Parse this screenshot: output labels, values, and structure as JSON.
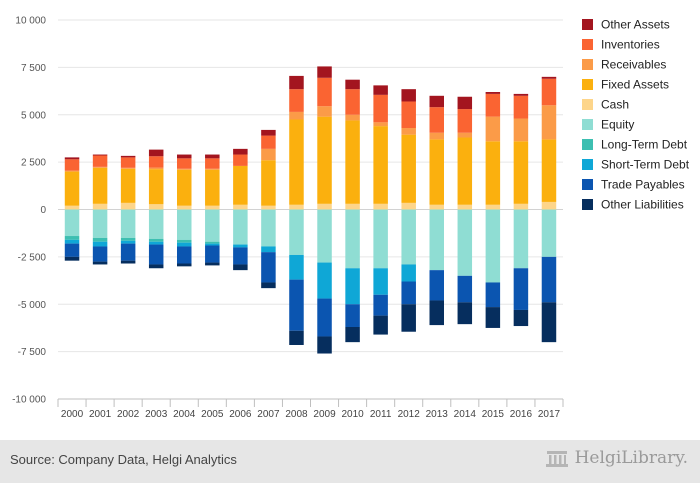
{
  "chart_data": {
    "type": "bar",
    "stacked": true,
    "categories": [
      "2000",
      "2001",
      "2002",
      "2003",
      "2004",
      "2005",
      "2006",
      "2007",
      "2008",
      "2009",
      "2010",
      "2011",
      "2012",
      "2013",
      "2014",
      "2015",
      "2016",
      "2017"
    ],
    "ylim": [
      -10000,
      10000
    ],
    "yticks": [
      10000,
      7500,
      5000,
      2500,
      0,
      -2500,
      -5000,
      -7500,
      -10000
    ],
    "ytick_labels": [
      "10 000",
      "7 500",
      "5 000",
      "2 500",
      "0",
      "-2 500",
      "-5 000",
      "-7 500",
      "-10 000"
    ],
    "grid": true,
    "legend_position": "right",
    "positive_series": [
      {
        "name": "Cash",
        "color": "#fdd58a",
        "values": [
          200,
          300,
          350,
          280,
          200,
          200,
          250,
          200,
          250,
          300,
          300,
          300,
          350,
          250,
          250,
          250,
          300,
          400
        ]
      },
      {
        "name": "Fixed Assets",
        "color": "#fbb00e",
        "values": [
          1800,
          1900,
          1800,
          1850,
          1900,
          1900,
          2050,
          2400,
          4500,
          4600,
          4400,
          4100,
          3600,
          3450,
          3550,
          3350,
          3300,
          3300
        ]
      },
      {
        "name": "Receivables",
        "color": "#fb9b48",
        "values": [
          50,
          50,
          50,
          80,
          50,
          50,
          0,
          600,
          400,
          550,
          300,
          200,
          350,
          350,
          250,
          1300,
          1200,
          1800
        ]
      },
      {
        "name": "Inventories",
        "color": "#fa6432",
        "values": [
          600,
          600,
          550,
          600,
          550,
          550,
          600,
          700,
          1200,
          1500,
          1350,
          1450,
          1400,
          1350,
          1250,
          1200,
          1200,
          1400
        ]
      },
      {
        "name": "Other Assets",
        "color": "#a3151f",
        "values": [
          100,
          50,
          80,
          350,
          200,
          200,
          300,
          300,
          700,
          600,
          500,
          500,
          650,
          600,
          650,
          100,
          100,
          100
        ]
      }
    ],
    "negative_series": [
      {
        "name": "Equity",
        "color": "#8fddd3",
        "values": [
          1400,
          1500,
          1500,
          1550,
          1600,
          1700,
          1850,
          1950,
          2400,
          2800,
          3100,
          3100,
          2900,
          3200,
          3500,
          3850,
          3100,
          2500
        ]
      },
      {
        "name": "Long-Term Debt",
        "color": "#3dbfb1",
        "values": [
          200,
          200,
          150,
          150,
          150,
          100,
          0,
          0,
          0,
          0,
          0,
          0,
          0,
          0,
          0,
          0,
          0,
          0
        ]
      },
      {
        "name": "Short-Term Debt",
        "color": "#0fa7d6",
        "values": [
          200,
          250,
          150,
          150,
          200,
          100,
          150,
          300,
          1300,
          1900,
          1900,
          1400,
          900,
          0,
          0,
          0,
          0,
          0
        ]
      },
      {
        "name": "Trade Payables",
        "color": "#0b55b0",
        "values": [
          700,
          800,
          900,
          1050,
          900,
          900,
          900,
          1600,
          2700,
          2000,
          1200,
          1100,
          1200,
          1600,
          1400,
          1300,
          2200,
          2400
        ]
      },
      {
        "name": "Other Liabilities",
        "color": "#062e5e",
        "values": [
          200,
          150,
          150,
          200,
          150,
          150,
          300,
          300,
          750,
          900,
          800,
          1000,
          1450,
          1300,
          1150,
          1100,
          850,
          2100
        ]
      }
    ],
    "legend_order": [
      "Other Assets",
      "Inventories",
      "Receivables",
      "Fixed Assets",
      "Cash",
      "Equity",
      "Long-Term Debt",
      "Short-Term Debt",
      "Trade Payables",
      "Other Liabilities"
    ]
  },
  "source_text": "Source: Company Data, Helgi Analytics",
  "logo": {
    "text": "HelgiLibrary."
  }
}
